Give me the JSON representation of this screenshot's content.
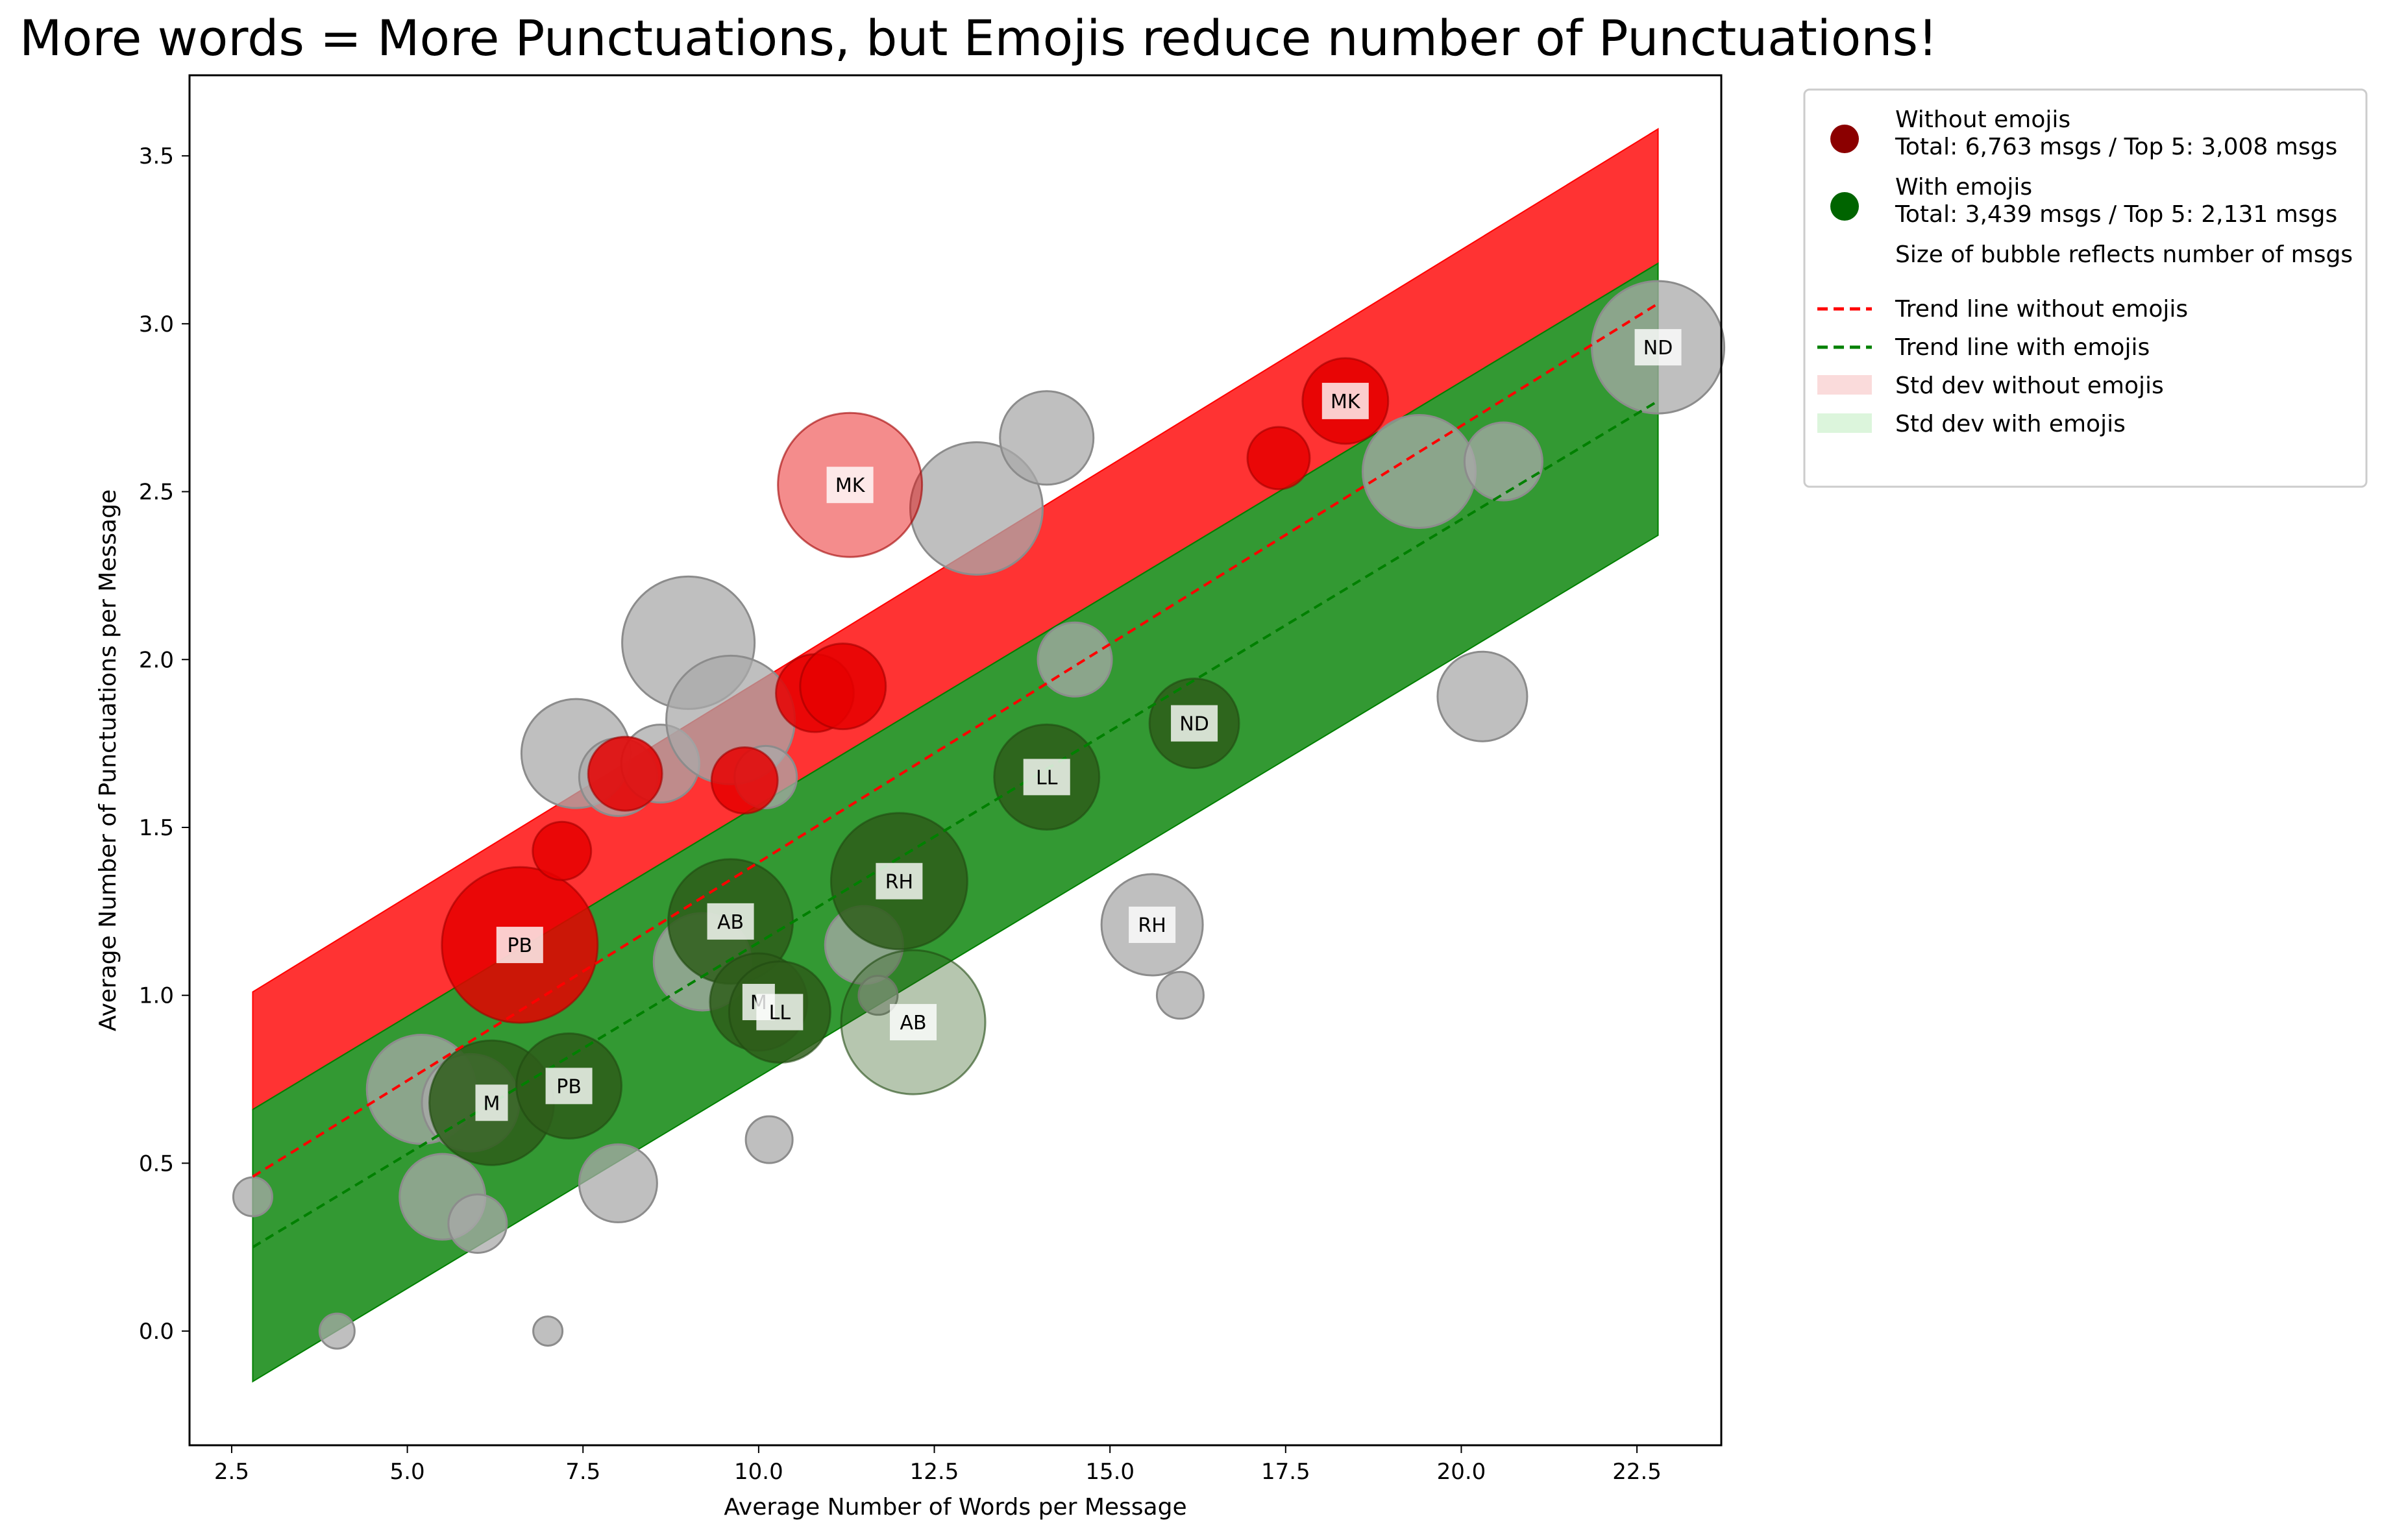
{
  "chart_data": {
    "type": "scatter",
    "title": "More words = More Punctuations, but Emojis reduce number of Punctuations!",
    "xlabel": "Average Number of Words per Message",
    "ylabel": "Average Number of Punctuations per Message",
    "xlim": [
      1.9,
      23.7
    ],
    "ylim": [
      -0.34,
      3.74
    ],
    "xticks": [
      2.5,
      5.0,
      7.5,
      10.0,
      12.5,
      15.0,
      17.5,
      20.0,
      22.5
    ],
    "xtick_labels": [
      "2.5",
      "5.0",
      "7.5",
      "10.0",
      "12.5",
      "15.0",
      "17.5",
      "20.0",
      "22.5"
    ],
    "yticks": [
      0.0,
      0.5,
      1.0,
      1.5,
      2.0,
      2.5,
      3.0,
      3.5
    ],
    "ytick_labels": [
      "0.0",
      "0.5",
      "1.0",
      "1.5",
      "2.0",
      "2.5",
      "3.0",
      "3.5"
    ],
    "legend_position": "outside-top-right",
    "colors": {
      "without_emojis": "#8b0000",
      "with_emojis": "#006400",
      "band_without": "#ff0000",
      "band_with": "#008000",
      "trend_without": "#ff0000",
      "trend_with": "#008000",
      "grey": "#a9a9a9",
      "std_without_swatch": "#fadbdb",
      "std_with_swatch": "#dcf5dc"
    },
    "bands": [
      {
        "name": "Std dev without emojis",
        "x": [
          2.8,
          22.8
        ],
        "lower": [
          0.66,
          3.18
        ],
        "upper": [
          1.01,
          3.58
        ]
      },
      {
        "name": "Std dev with emojis",
        "x": [
          2.8,
          22.8
        ],
        "lower": [
          -0.15,
          2.37
        ],
        "upper": [
          0.66,
          3.18
        ]
      }
    ],
    "trend_lines": [
      {
        "name": "Trend line without emojis",
        "x": [
          2.8,
          22.8
        ],
        "y": [
          0.46,
          3.06
        ]
      },
      {
        "name": "Trend line with emojis",
        "x": [
          2.8,
          22.8
        ],
        "y": [
          0.25,
          2.77
        ]
      }
    ],
    "points_grey": [
      {
        "x": 2.8,
        "y": 0.4,
        "r": 1.0
      },
      {
        "x": 4.0,
        "y": 0.0,
        "r": 0.9
      },
      {
        "x": 7.0,
        "y": 0.0,
        "r": 0.75
      },
      {
        "x": 5.5,
        "y": 0.4,
        "r": 2.2
      },
      {
        "x": 6.0,
        "y": 0.32,
        "r": 1.5
      },
      {
        "x": 8.0,
        "y": 0.44,
        "r": 2.0
      },
      {
        "x": 10.15,
        "y": 0.57,
        "r": 1.2
      },
      {
        "x": 5.2,
        "y": 0.72,
        "r": 2.8
      },
      {
        "x": 5.9,
        "y": 0.68,
        "r": 2.5
      },
      {
        "x": 7.4,
        "y": 1.72,
        "r": 2.8
      },
      {
        "x": 8.0,
        "y": 1.65,
        "r": 2.0
      },
      {
        "x": 8.6,
        "y": 1.69,
        "r": 2.0
      },
      {
        "x": 9.0,
        "y": 2.05,
        "r": 3.4
      },
      {
        "x": 9.6,
        "y": 1.82,
        "r": 3.3
      },
      {
        "x": 10.1,
        "y": 1.65,
        "r": 1.6
      },
      {
        "x": 13.1,
        "y": 2.45,
        "r": 3.4
      },
      {
        "x": 14.1,
        "y": 2.66,
        "r": 2.4
      },
      {
        "x": 14.5,
        "y": 2.0,
        "r": 1.9
      },
      {
        "x": 15.6,
        "y": 1.21,
        "r": 2.6
      },
      {
        "x": 16.0,
        "y": 1.0,
        "r": 1.2
      },
      {
        "x": 19.4,
        "y": 2.56,
        "r": 2.9
      },
      {
        "x": 20.3,
        "y": 1.89,
        "r": 2.3
      },
      {
        "x": 20.6,
        "y": 2.59,
        "r": 2.0
      },
      {
        "x": 22.8,
        "y": 2.93,
        "r": 3.4
      },
      {
        "x": 11.5,
        "y": 1.15,
        "r": 2.0
      },
      {
        "x": 9.2,
        "y": 1.1,
        "r": 2.5
      },
      {
        "x": 11.7,
        "y": 1.0,
        "r": 1.0
      }
    ],
    "points_without_emojis": [
      {
        "label": "MK",
        "x": 11.3,
        "y": 2.52,
        "r": 3.7,
        "alpha": 0.45
      },
      {
        "label": "MK",
        "x": 18.35,
        "y": 2.77,
        "r": 2.2,
        "alpha": 0.9
      },
      {
        "label": "PB",
        "x": 6.6,
        "y": 1.15,
        "r": 4.0,
        "alpha": 0.85
      },
      {
        "label": "",
        "x": 17.4,
        "y": 2.6,
        "r": 1.6,
        "alpha": 0.85
      },
      {
        "label": "",
        "x": 10.8,
        "y": 1.9,
        "r": 2.0,
        "alpha": 0.85
      },
      {
        "label": "",
        "x": 11.2,
        "y": 1.92,
        "r": 2.2,
        "alpha": 0.85
      },
      {
        "label": "",
        "x": 8.1,
        "y": 1.66,
        "r": 1.9,
        "alpha": 0.85
      },
      {
        "label": "",
        "x": 7.2,
        "y": 1.43,
        "r": 1.5,
        "alpha": 0.85
      },
      {
        "label": "",
        "x": 9.8,
        "y": 1.64,
        "r": 1.7,
        "alpha": 0.85
      }
    ],
    "points_with_emojis": [
      {
        "label": "AB",
        "x": 12.2,
        "y": 0.92,
        "r": 3.7,
        "alpha": 0.35
      },
      {
        "label": "ND",
        "x": 16.2,
        "y": 1.81,
        "r": 2.3,
        "alpha": 0.85
      },
      {
        "label": "LL",
        "x": 14.1,
        "y": 1.65,
        "r": 2.7,
        "alpha": 0.85
      },
      {
        "label": "RH",
        "x": 12.0,
        "y": 1.34,
        "r": 3.5,
        "alpha": 0.85
      },
      {
        "label": "AB",
        "x": 9.6,
        "y": 1.22,
        "r": 3.2,
        "alpha": 0.85
      },
      {
        "label": "M",
        "x": 10.0,
        "y": 0.98,
        "r": 2.5,
        "alpha": 0.85
      },
      {
        "label": "LL",
        "x": 10.3,
        "y": 0.95,
        "r": 2.6,
        "alpha": 0.85
      },
      {
        "label": "M",
        "x": 6.2,
        "y": 0.68,
        "r": 3.2,
        "alpha": 0.85
      },
      {
        "label": "PB",
        "x": 7.3,
        "y": 0.73,
        "r": 2.7,
        "alpha": 0.85
      }
    ],
    "grey_labels": [
      {
        "label": "ND",
        "x": 22.8,
        "y": 2.93
      },
      {
        "label": "RH",
        "x": 15.6,
        "y": 1.21
      }
    ],
    "legend": [
      {
        "type": "marker",
        "color": "#8b0000",
        "title": "Without emojis",
        "sub": "Total: 6,763 msgs / Top 5: 3,008 msgs"
      },
      {
        "type": "marker",
        "color": "#006400",
        "title": "With emojis",
        "sub": "Total: 3,439 msgs / Top 5: 2,131 msgs"
      },
      {
        "type": "text",
        "title": "Size of bubble reflects number of msgs"
      },
      {
        "type": "dash",
        "color": "#ff0000",
        "title": "Trend line without emojis"
      },
      {
        "type": "dash",
        "color": "#008000",
        "title": "Trend line with emojis"
      },
      {
        "type": "patch",
        "color": "#fadbdb",
        "title": "Std dev without emojis"
      },
      {
        "type": "patch",
        "color": "#dcf5dc",
        "title": "Std dev with emojis"
      }
    ]
  }
}
